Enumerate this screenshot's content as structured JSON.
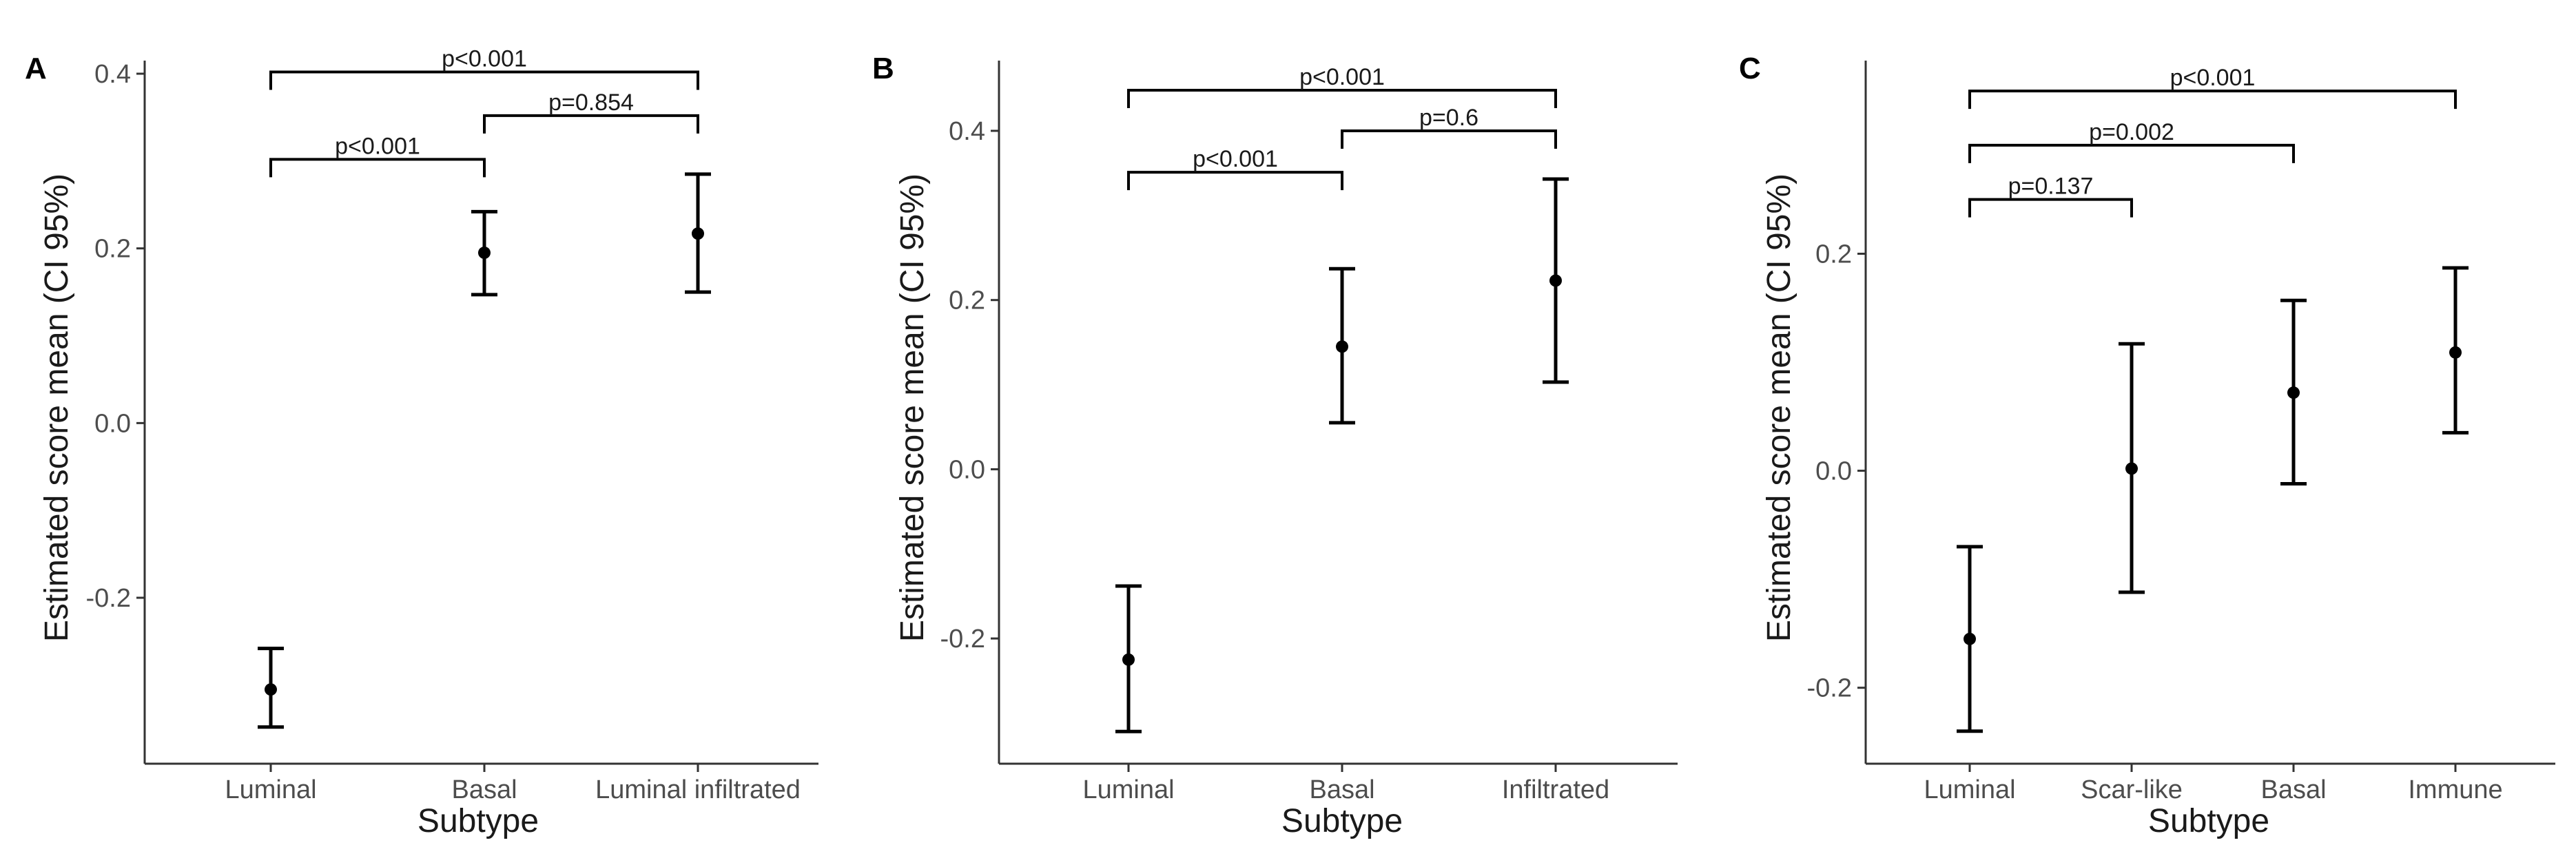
{
  "chart_data": [
    {
      "type": "scatter",
      "panel_label": "A",
      "xlabel": "Subtype",
      "ylabel": "Estimated score mean (CI 95%)",
      "categories": [
        "Luminal",
        "Basal",
        "Luminal infiltrated"
      ],
      "values": [
        -0.305,
        0.195,
        0.217
      ],
      "ci_lower": [
        -0.348,
        0.147,
        0.15
      ],
      "ci_upper": [
        -0.258,
        0.242,
        0.285
      ],
      "ylim": [
        -0.39,
        0.415
      ],
      "yticks": [
        -0.2,
        0.0,
        0.2,
        0.4
      ],
      "ytick_labels": [
        "-0.2",
        "0.0",
        "0.2",
        "0.4"
      ],
      "comparisons": [
        {
          "from": 0,
          "to": 1,
          "label": "p<0.001",
          "y": 0.302
        },
        {
          "from": 1,
          "to": 2,
          "label": "p=0.854",
          "y": 0.352
        },
        {
          "from": 0,
          "to": 2,
          "label": "p<0.001",
          "y": 0.402
        }
      ],
      "grid": false
    },
    {
      "type": "scatter",
      "panel_label": "B",
      "xlabel": "Subtype",
      "ylabel": "Estimated score mean (CI 95%)",
      "categories": [
        "Luminal",
        "Basal",
        "Infiltrated"
      ],
      "values": [
        -0.225,
        0.145,
        0.223
      ],
      "ci_lower": [
        -0.31,
        0.055,
        0.103
      ],
      "ci_upper": [
        -0.138,
        0.237,
        0.343
      ],
      "ylim": [
        -0.348,
        0.483
      ],
      "yticks": [
        -0.2,
        0.0,
        0.2,
        0.4
      ],
      "ytick_labels": [
        "-0.2",
        "0.0",
        "0.2",
        "0.4"
      ],
      "comparisons": [
        {
          "from": 0,
          "to": 1,
          "label": "p<0.001",
          "y": 0.351
        },
        {
          "from": 1,
          "to": 2,
          "label": "p=0.6",
          "y": 0.4
        },
        {
          "from": 0,
          "to": 2,
          "label": "p<0.001",
          "y": 0.448
        }
      ],
      "grid": false
    },
    {
      "type": "scatter",
      "panel_label": "C",
      "xlabel": "Subtype",
      "ylabel": "Estimated score mean (CI 95%)",
      "categories": [
        "Luminal",
        "Scar-like",
        "Basal",
        "Immune"
      ],
      "values": [
        -0.155,
        0.002,
        0.072,
        0.109
      ],
      "ci_lower": [
        -0.24,
        -0.112,
        -0.012,
        0.035
      ],
      "ci_upper": [
        -0.07,
        0.117,
        0.157,
        0.187
      ],
      "ylim": [
        -0.27,
        0.378
      ],
      "yticks": [
        -0.2,
        0.0,
        0.2
      ],
      "ytick_labels": [
        "-0.2",
        "0.0",
        "0.2"
      ],
      "comparisons": [
        {
          "from": 0,
          "to": 1,
          "label": "p=0.137",
          "y": 0.25
        },
        {
          "from": 0,
          "to": 2,
          "label": "p=0.002",
          "y": 0.3
        },
        {
          "from": 0,
          "to": 3,
          "label": "p<0.001",
          "y": 0.35
        }
      ],
      "grid": false
    }
  ]
}
